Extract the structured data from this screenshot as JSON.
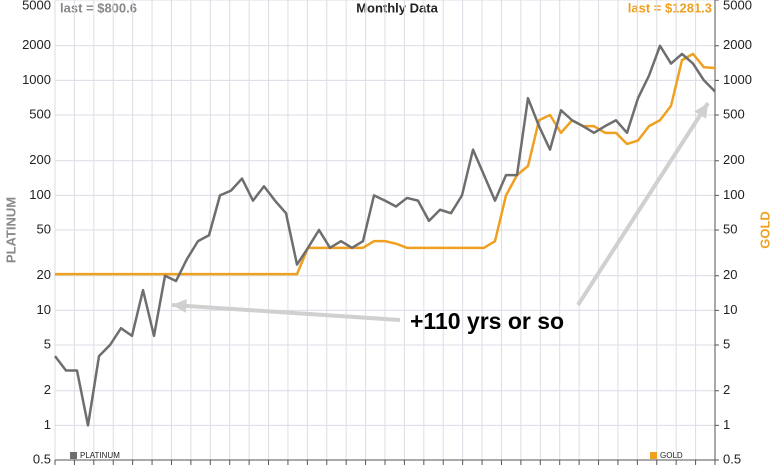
{
  "chart_data": {
    "type": "line",
    "title": "Monthly Data",
    "annotations": [
      "last = $800.6",
      "last = $1281.3",
      "+110 yrs or so"
    ],
    "y_label": "PLATINUM",
    "y2_label": "GOLD",
    "log_scale": true,
    "grid": true,
    "categories": [
      null,
      null,
      null,
      null,
      null,
      null,
      null,
      null,
      null,
      null,
      null,
      null,
      null,
      null,
      null,
      null,
      null,
      null,
      null,
      null,
      null,
      null,
      null,
      null,
      null,
      null,
      null,
      null,
      null,
      null,
      null,
      null,
      null,
      null,
      null,
      null,
      null,
      null,
      null,
      null,
      null,
      null,
      null,
      null,
      null,
      null,
      null,
      null,
      null,
      null,
      null,
      null,
      null,
      null,
      null,
      null,
      null,
      null,
      null,
      null,
      null
    ],
    "ylim": [
      0.5,
      5000
    ],
    "yticks": [
      0.5,
      1,
      2,
      5,
      10,
      20,
      50,
      100,
      200,
      500,
      1000,
      2000,
      5000
    ],
    "y2lim": [
      0.5,
      5000
    ],
    "y2ticks": [
      0.5,
      1,
      2,
      5,
      10,
      20,
      50,
      100,
      200,
      500,
      1000,
      2000,
      5000
    ],
    "legend": "bottom",
    "series": [
      {
        "name": "PLATINUM",
        "color": "#6e6e6e",
        "axis": "y",
        "values": [
          4,
          3,
          3,
          1,
          4,
          5,
          7,
          6,
          15,
          6,
          20,
          18,
          28,
          40,
          45,
          100,
          110,
          140,
          90,
          120,
          90,
          70,
          25,
          35,
          50,
          35,
          40,
          35,
          40,
          100,
          90,
          80,
          95,
          90,
          60,
          75,
          70,
          100,
          250,
          150,
          90,
          150,
          150,
          700,
          400,
          250,
          550,
          450,
          400,
          350,
          400,
          450,
          350,
          700,
          1100,
          2000,
          1400,
          1700,
          1400,
          1000,
          800.6
        ]
      },
      {
        "name": "GOLD",
        "color": "#f0a020",
        "axis": "y2",
        "values": [
          20.67,
          20.67,
          20.67,
          20.67,
          20.67,
          20.67,
          20.67,
          20.67,
          20.67,
          20.67,
          20.67,
          20.67,
          20.67,
          20.67,
          20.67,
          20.67,
          20.67,
          20.67,
          20.67,
          20.67,
          20.67,
          20.67,
          20.67,
          35,
          35,
          35,
          35,
          35,
          35,
          40,
          40,
          38,
          35,
          35,
          35,
          35,
          35,
          35,
          35,
          35,
          40,
          100,
          150,
          180,
          450,
          500,
          350,
          450,
          400,
          400,
          350,
          350,
          280,
          300,
          400,
          450,
          600,
          1500,
          1700,
          1300,
          1281.3
        ]
      }
    ]
  }
}
